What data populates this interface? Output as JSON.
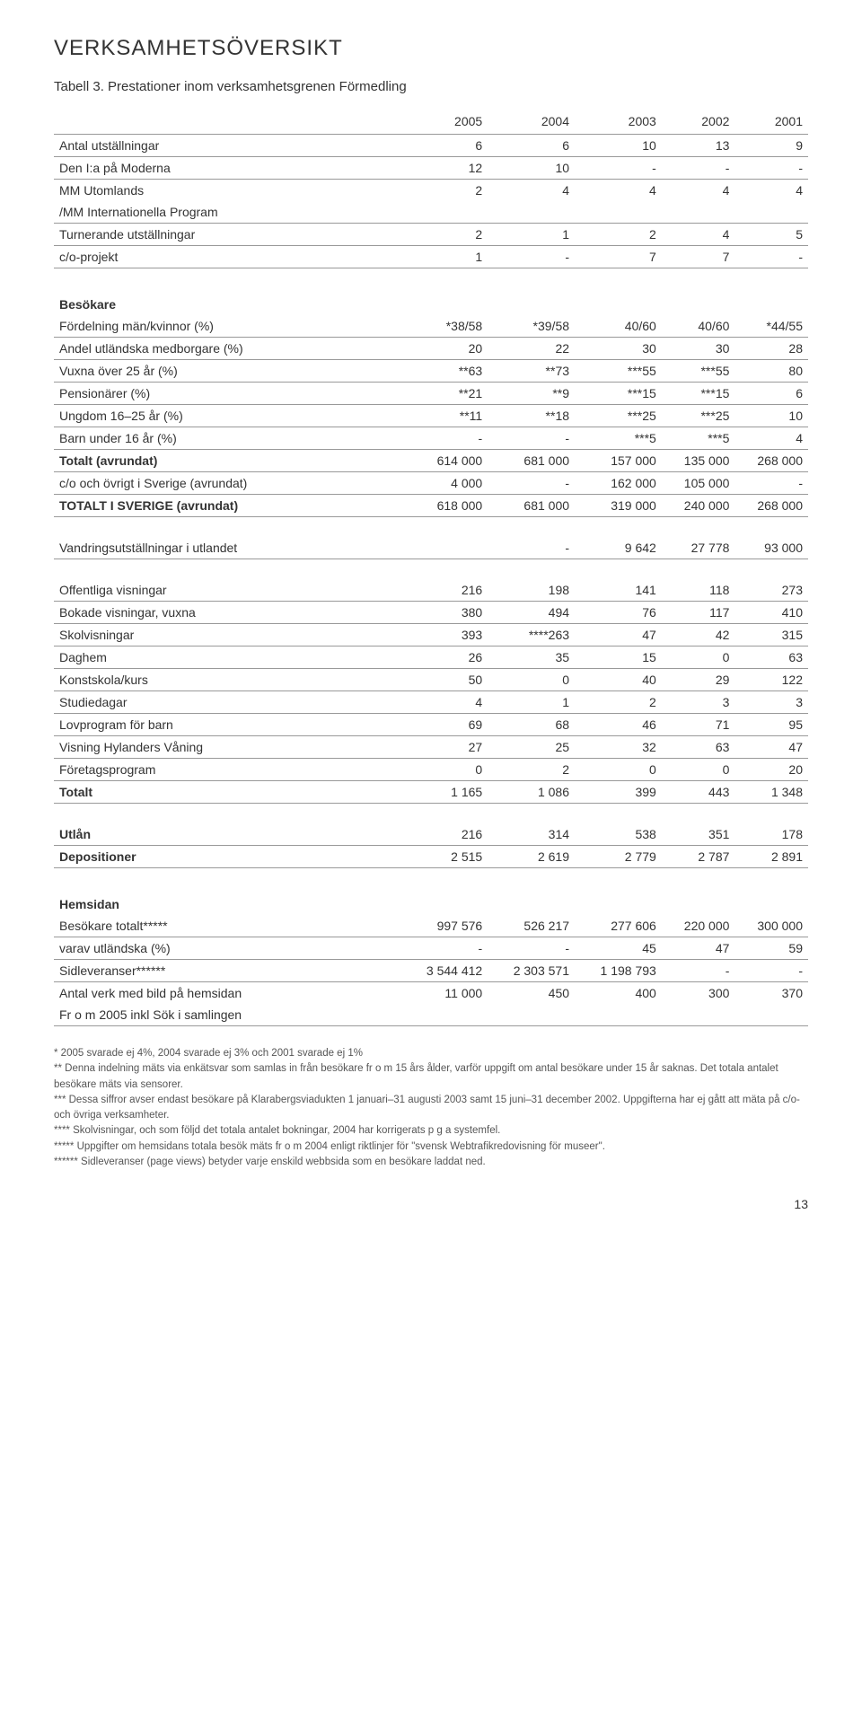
{
  "title": "VERKSAMHETSÖVERSIKT",
  "subtitle": "Tabell 3. Prestationer inom verksamhetsgrenen Förmedling",
  "page_number": "13",
  "years": [
    "2005",
    "2004",
    "2003",
    "2002",
    "2001"
  ],
  "rows1": [
    {
      "label": "Antal utställningar",
      "c": [
        "6",
        "6",
        "10",
        "13",
        "9"
      ],
      "line": true
    },
    {
      "label": "Den I:a på Moderna",
      "c": [
        "12",
        "10",
        "-",
        "-",
        "-"
      ],
      "line": true
    },
    {
      "label": "MM Utomlands",
      "c": [
        "2",
        "4",
        "4",
        "4",
        "4"
      ],
      "line": false
    },
    {
      "label": "/MM Internationella Program",
      "c": [
        "",
        "",
        "",
        "",
        ""
      ],
      "line": true
    },
    {
      "label": "Turnerande utställningar",
      "c": [
        "2",
        "1",
        "2",
        "4",
        "5"
      ],
      "line": true
    },
    {
      "label": "c/o-projekt",
      "c": [
        "1",
        "-",
        "7",
        "7",
        "-"
      ],
      "line": true
    }
  ],
  "group2_header": "Besökare",
  "rows2": [
    {
      "label": "Fördelning män/kvinnor (%)",
      "c": [
        "*38/58",
        "*39/58",
        "40/60",
        "40/60",
        "*44/55"
      ],
      "line": true
    },
    {
      "label": "Andel utländska medborgare (%)",
      "c": [
        "20",
        "22",
        "30",
        "30",
        "28"
      ],
      "line": true
    },
    {
      "label": "Vuxna över 25 år (%)",
      "c": [
        "**63",
        "**73",
        "***55",
        "***55",
        "80"
      ],
      "line": true
    },
    {
      "label": "Pensionärer (%)",
      "c": [
        "**21",
        "**9",
        "***15",
        "***15",
        "6"
      ],
      "line": true
    },
    {
      "label": "Ungdom 16–25 år (%)",
      "c": [
        "**11",
        "**18",
        "***25",
        "***25",
        "10"
      ],
      "line": true
    },
    {
      "label": "Barn under 16 år (%)",
      "c": [
        "-",
        "-",
        "***5",
        "***5",
        "4"
      ],
      "line": true
    },
    {
      "label": "Totalt (avrundat)",
      "c": [
        "614 000",
        "681 000",
        "157 000",
        "135 000",
        "268 000"
      ],
      "line": true,
      "bold": true
    },
    {
      "label": "c/o och övrigt i Sverige (avrundat)",
      "c": [
        "4 000",
        "-",
        "162 000",
        "105 000",
        "-"
      ],
      "line": true
    },
    {
      "label": "TOTALT I SVERIGE (avrundat)",
      "c": [
        "618 000",
        "681 000",
        "319 000",
        "240 000",
        "268 000"
      ],
      "line": true,
      "bold": true
    }
  ],
  "rows3": [
    {
      "label": "Vandringsutställningar i utlandet",
      "c": [
        "",
        "-",
        "9 642",
        "27 778",
        "93 000"
      ],
      "line": true
    }
  ],
  "rows4": [
    {
      "label": "Offentliga visningar",
      "c": [
        "216",
        "198",
        "141",
        "118",
        "273"
      ],
      "line": true
    },
    {
      "label": "Bokade visningar, vuxna",
      "c": [
        "380",
        "494",
        "76",
        "117",
        "410"
      ],
      "line": true
    },
    {
      "label": "Skolvisningar",
      "c": [
        "393",
        "****263",
        "47",
        "42",
        "315"
      ],
      "line": true
    },
    {
      "label": "Daghem",
      "c": [
        "26",
        "35",
        "15",
        "0",
        "63"
      ],
      "line": true
    },
    {
      "label": "Konstskola/kurs",
      "c": [
        "50",
        "0",
        "40",
        "29",
        "122"
      ],
      "line": true
    },
    {
      "label": "Studiedagar",
      "c": [
        "4",
        "1",
        "2",
        "3",
        "3"
      ],
      "line": true
    },
    {
      "label": "Lovprogram för barn",
      "c": [
        "69",
        "68",
        "46",
        "71",
        "95"
      ],
      "line": true
    },
    {
      "label": "Visning Hylanders Våning",
      "c": [
        "27",
        "25",
        "32",
        "63",
        "47"
      ],
      "line": true
    },
    {
      "label": "Företagsprogram",
      "c": [
        "0",
        "2",
        "0",
        "0",
        "20"
      ],
      "line": true
    },
    {
      "label": "Totalt",
      "c": [
        "1 165",
        "1 086",
        "399",
        "443",
        "1 348"
      ],
      "line": true,
      "bold": true
    }
  ],
  "rows5": [
    {
      "label": "Utlån",
      "c": [
        "216",
        "314",
        "538",
        "351",
        "178"
      ],
      "line": true,
      "bold": true
    },
    {
      "label": "Depositioner",
      "c": [
        "2 515",
        "2 619",
        "2 779",
        "2 787",
        "2 891"
      ],
      "line": true,
      "bold": true
    }
  ],
  "group6_header": "Hemsidan",
  "rows6": [
    {
      "label": "Besökare totalt*****",
      "c": [
        "997 576",
        "526 217",
        "277 606",
        "220 000",
        "300 000"
      ],
      "line": true
    },
    {
      "label": "varav utländska (%)",
      "c": [
        "-",
        "-",
        "45",
        "47",
        "59"
      ],
      "line": true
    },
    {
      "label": "Sidleveranser******",
      "c": [
        "3 544 412",
        "2 303 571",
        "1 198 793",
        "-",
        "-"
      ],
      "line": true
    },
    {
      "label": "Antal verk med bild på hemsidan",
      "c": [
        "11 000",
        "450",
        "400",
        "300",
        "370"
      ],
      "line": false
    },
    {
      "label": "Fr o m 2005 inkl Sök i samlingen",
      "c": [
        "",
        "",
        "",
        "",
        ""
      ],
      "line": true
    }
  ],
  "footnotes": [
    "* 2005 svarade ej 4%, 2004 svarade ej 3% och 2001 svarade ej 1%",
    "** Denna indelning mäts via enkätsvar som samlas in från besökare fr o m 15 års ålder, varför uppgift om antal besökare under 15 år saknas. Det totala antalet besökare mäts via sensorer.",
    "*** Dessa siffror avser endast besökare på Klarabergsviadukten 1 januari–31 augusti 2003 samt 15 juni–31 december 2002. Uppgifterna har ej gått att mäta på c/o- och övriga verksamheter.",
    "**** Skolvisningar, och som följd det totala antalet bokningar, 2004 har korrigerats p g a systemfel.",
    "***** Uppgifter om hemsidans totala besök mäts fr o m 2004 enligt riktlinjer för \"svensk Webtrafikredovisning för museer\".",
    "****** Sidleveranser (page views) betyder varje enskild webbsida som en besökare laddat ned."
  ]
}
